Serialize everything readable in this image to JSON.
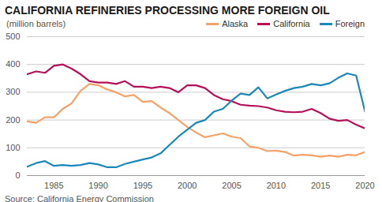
{
  "chart_data": {
    "type": "line",
    "title": "CALIFORNIA REFINERIES PROCESSING MORE FOREIGN OIL",
    "subtitle": "(million barrels)",
    "caption": "Source: California Energy Commission",
    "x": [
      1982,
      1983,
      1984,
      1985,
      1986,
      1987,
      1988,
      1989,
      1990,
      1991,
      1992,
      1993,
      1994,
      1995,
      1996,
      1997,
      1998,
      1999,
      2000,
      2001,
      2002,
      2003,
      2004,
      2005,
      2006,
      2007,
      2008,
      2009,
      2010,
      2011,
      2012,
      2013,
      2014,
      2015,
      2016,
      2017,
      2018,
      2019,
      2020
    ],
    "series": [
      {
        "name": "Alaska",
        "color": "#f5a26a",
        "values": [
          195,
          190,
          210,
          210,
          240,
          260,
          305,
          330,
          325,
          310,
          300,
          285,
          290,
          265,
          268,
          245,
          225,
          200,
          175,
          155,
          138,
          145,
          152,
          140,
          135,
          105,
          100,
          88,
          90,
          85,
          72,
          75,
          73,
          68,
          72,
          68,
          75,
          73,
          85
        ]
      },
      {
        "name": "California",
        "color": "#b5115a",
        "values": [
          365,
          375,
          370,
          395,
          400,
          385,
          365,
          340,
          335,
          335,
          330,
          340,
          320,
          320,
          315,
          320,
          315,
          300,
          325,
          325,
          315,
          290,
          275,
          268,
          255,
          252,
          250,
          245,
          235,
          230,
          228,
          230,
          240,
          225,
          205,
          197,
          200,
          183,
          170
        ]
      },
      {
        "name": "Foreign",
        "color": "#1a88b8",
        "values": [
          32,
          45,
          52,
          35,
          38,
          35,
          38,
          45,
          40,
          30,
          30,
          42,
          50,
          58,
          65,
          80,
          110,
          140,
          165,
          190,
          200,
          230,
          240,
          270,
          295,
          290,
          318,
          278,
          292,
          305,
          315,
          320,
          330,
          325,
          332,
          352,
          368,
          360,
          230
        ]
      }
    ],
    "xlim": [
      1982,
      2020
    ],
    "xticks": [
      1985,
      1990,
      1995,
      2000,
      2005,
      2010,
      2015,
      2020
    ],
    "ylim": [
      0,
      500
    ],
    "yticks": [
      0,
      100,
      200,
      300,
      400,
      500
    ],
    "grid": true,
    "legend": "top-right"
  }
}
